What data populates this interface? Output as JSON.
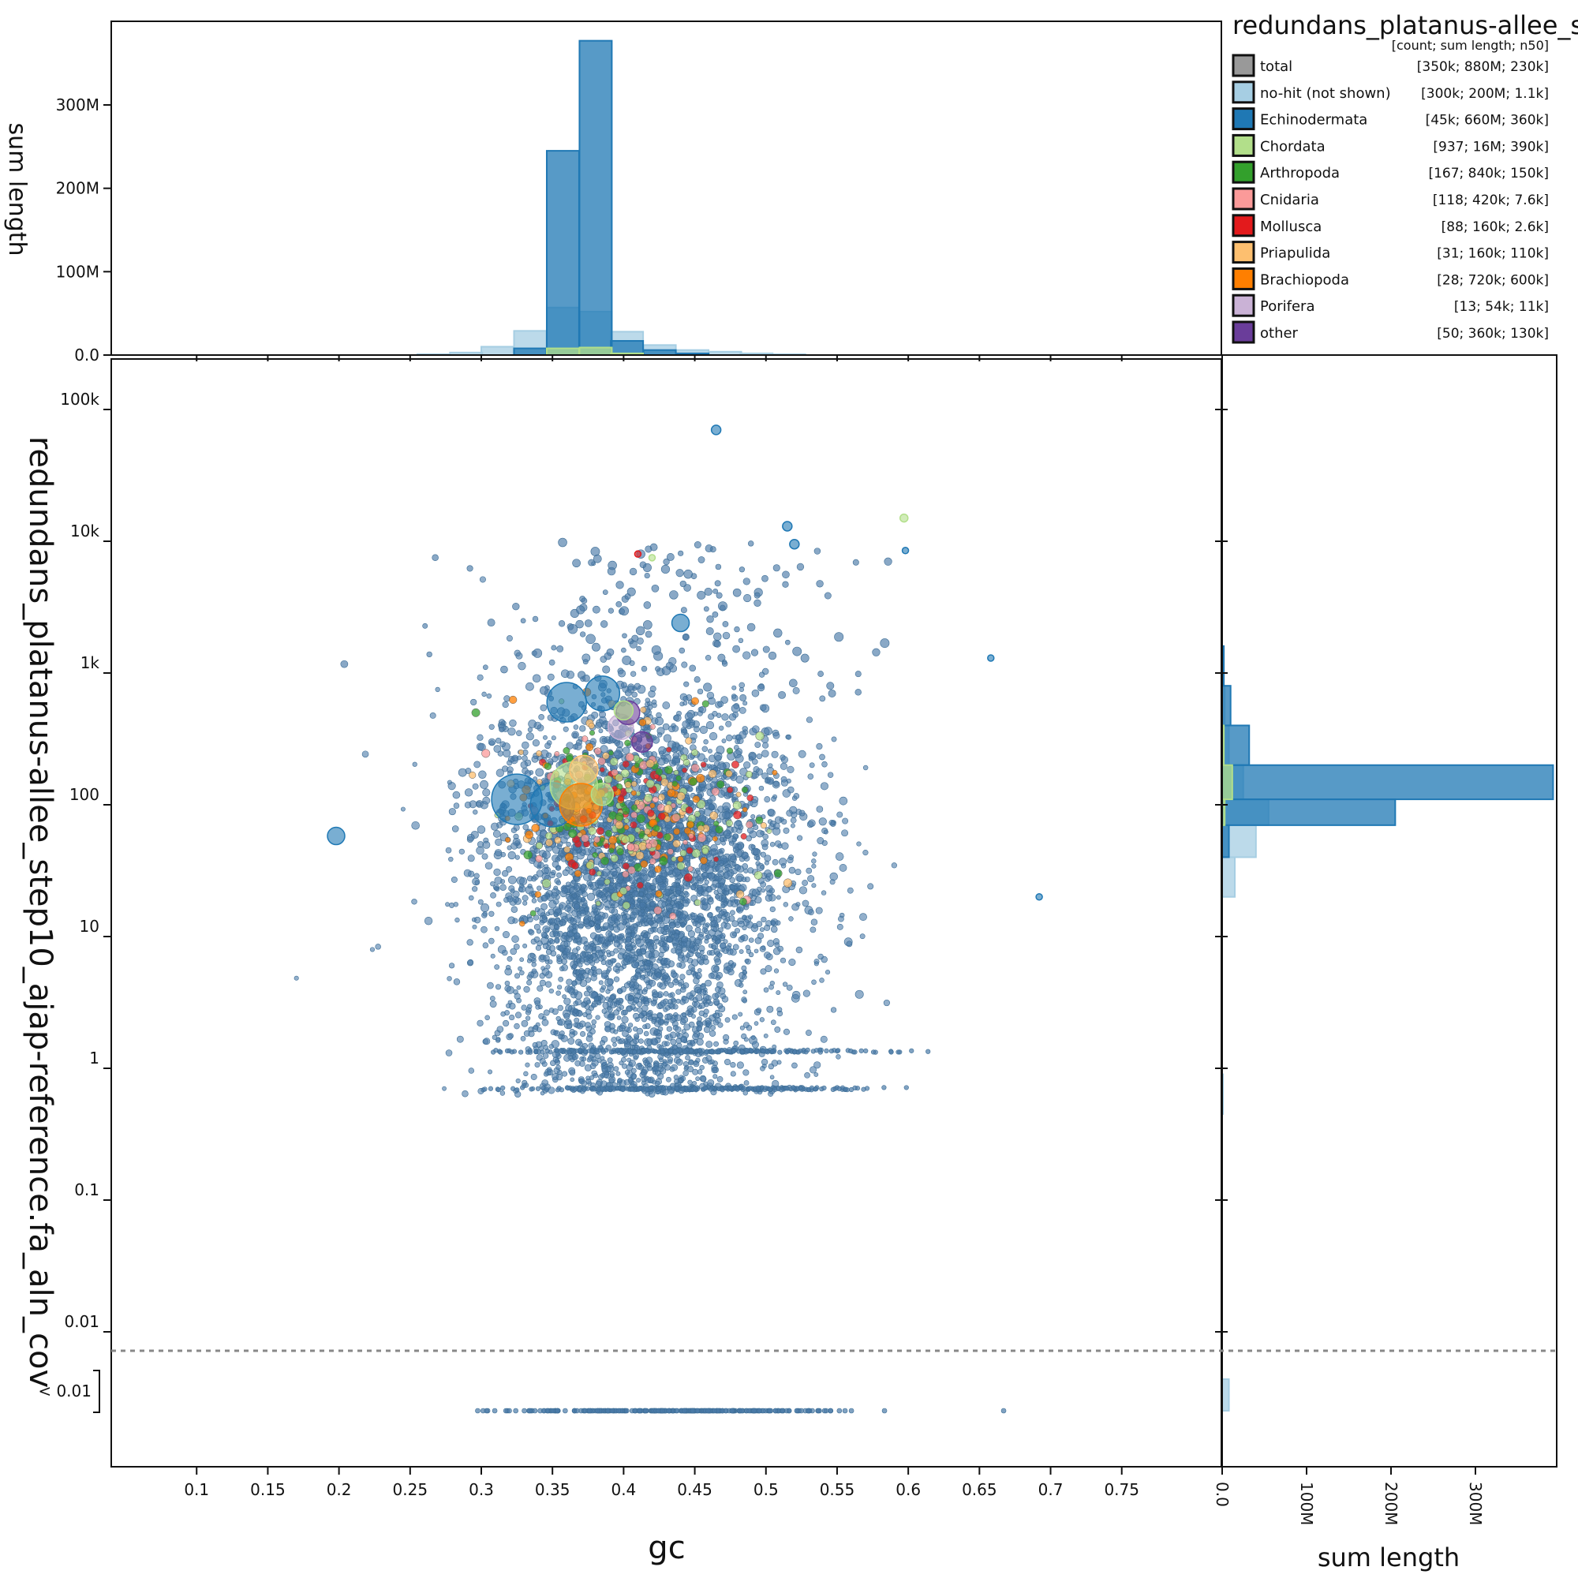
{
  "chart_data": {
    "type": "scatter",
    "title": "redundans_platanus-allee_s",
    "legend_header": "[count; sum length; n50]",
    "xlabel": "gc",
    "ylabel": "redundans_platanus-allee_step10_ajap-reference.fa_aln_cov",
    "top_hist_ylabel": "sum length",
    "right_hist_xlabel": "sum length",
    "low_cov_label": "< 0.01",
    "xlim": [
      0.04,
      0.82
    ],
    "ylim": [
      0.01,
      200000
    ],
    "yscale": "log",
    "x_ticks": [
      "0.1",
      "0.15",
      "0.2",
      "0.25",
      "0.3",
      "0.35",
      "0.4",
      "0.45",
      "0.5",
      "0.55",
      "0.6",
      "0.65",
      "0.7",
      "0.75"
    ],
    "x_tick_values": [
      0.1,
      0.15,
      0.2,
      0.25,
      0.3,
      0.35,
      0.4,
      0.45,
      0.5,
      0.55,
      0.6,
      0.65,
      0.7,
      0.75
    ],
    "y_ticks": [
      "0.01",
      "0.1",
      "1",
      "10",
      "100",
      "1k",
      "10k",
      "100k"
    ],
    "y_tick_values": [
      0.01,
      0.1,
      1,
      10,
      100,
      1000,
      10000,
      100000
    ],
    "top_hist_ticks": [
      "0.0",
      "100M",
      "200M",
      "300M"
    ],
    "top_hist_tick_values": [
      0,
      100,
      200,
      300
    ],
    "right_hist_ticks": [
      "0.0",
      "100M",
      "200M",
      "300M"
    ],
    "right_hist_tick_values": [
      0,
      100,
      200,
      300
    ],
    "legend": [
      {
        "name": "total",
        "color": "#999999",
        "stats": "[350k; 880M; 230k]"
      },
      {
        "name": "no-hit (not shown)",
        "color": "#a6cee3",
        "stats": "[300k; 200M; 1.1k]"
      },
      {
        "name": "Echinodermata",
        "color": "#1f78b4",
        "stats": "[45k; 660M; 360k]"
      },
      {
        "name": "Chordata",
        "color": "#b2df8a",
        "stats": "[937; 16M; 390k]"
      },
      {
        "name": "Arthropoda",
        "color": "#33a02c",
        "stats": "[167; 840k; 150k]"
      },
      {
        "name": "Cnidaria",
        "color": "#fb9a99",
        "stats": "[118; 420k; 7.6k]"
      },
      {
        "name": "Mollusca",
        "color": "#e31a1c",
        "stats": "[88; 160k; 2.6k]"
      },
      {
        "name": "Priapulida",
        "color": "#fdbf6f",
        "stats": "[31; 160k; 110k]"
      },
      {
        "name": "Brachiopoda",
        "color": "#ff7f00",
        "stats": "[28; 720k; 600k]"
      },
      {
        "name": "Porifera",
        "color": "#cab2d6",
        "stats": "[13; 54k; 11k]"
      },
      {
        "name": "other",
        "color": "#6a3d9a",
        "stats": "[50; 360k; 130k]"
      }
    ],
    "top_hist": {
      "bin_width": 0.0227,
      "series": [
        {
          "name": "no-hit (not shown)",
          "color": "#a6cee3",
          "bins": [
            [
              0.255,
              1
            ],
            [
              0.278,
              3
            ],
            [
              0.3,
              10
            ],
            [
              0.323,
              29
            ],
            [
              0.346,
              57
            ],
            [
              0.369,
              52
            ],
            [
              0.391,
              28
            ],
            [
              0.414,
              12
            ],
            [
              0.437,
              6
            ],
            [
              0.46,
              4
            ],
            [
              0.482,
              2
            ],
            [
              0.505,
              1
            ]
          ]
        },
        {
          "name": "Echinodermata",
          "color": "#1f78b4",
          "bins": [
            [
              0.323,
              8
            ],
            [
              0.346,
              245
            ],
            [
              0.369,
              377
            ],
            [
              0.391,
              17
            ],
            [
              0.414,
              6
            ],
            [
              0.437,
              2
            ]
          ]
        },
        {
          "name": "Chordata",
          "color": "#b2df8a",
          "bins": [
            [
              0.346,
              8
            ],
            [
              0.369,
              9
            ],
            [
              0.391,
              2
            ]
          ]
        }
      ]
    },
    "right_hist": {
      "series": [
        {
          "name": "no-hit (not shown)",
          "color": "#a6cee3",
          "bins": [
            [
              [
                0.001,
                0.0015
              ],
              8
            ],
            [
              [
                0.45,
                0.9
              ],
              1
            ],
            [
              [
                20,
                40
              ],
              15
            ],
            [
              [
                40,
                70
              ],
              40
            ],
            [
              [
                70,
                110
              ],
              55
            ],
            [
              [
                110,
                200
              ],
              25
            ],
            [
              [
                200,
                400
              ],
              8
            ],
            [
              [
                400,
                800
              ],
              3
            ],
            [
              [
                800,
                1600
              ],
              1
            ]
          ]
        },
        {
          "name": "Echinodermata",
          "color": "#1f78b4",
          "bins": [
            [
              [
                40,
                70
              ],
              8
            ],
            [
              [
                70,
                110
              ],
              205
            ],
            [
              [
                110,
                200
              ],
              392
            ],
            [
              [
                200,
                400
              ],
              32
            ],
            [
              [
                400,
                800
              ],
              10
            ],
            [
              [
                800,
                1600
              ],
              2
            ]
          ]
        },
        {
          "name": "Chordata",
          "color": "#b2df8a",
          "bins": [
            [
              [
                70,
                110
              ],
              3
            ],
            [
              [
                110,
                200
              ],
              12
            ],
            [
              [
                200,
                400
              ],
              2
            ]
          ]
        }
      ]
    },
    "scatter_points": [
      {
        "gc": 0.465,
        "cov": 70000,
        "color": "#1f78b4",
        "r": 6
      },
      {
        "gc": 0.597,
        "cov": 15000,
        "color": "#b2df8a",
        "r": 5
      },
      {
        "gc": 0.44,
        "cov": 2400,
        "color": "#1f78b4",
        "r": 11
      },
      {
        "gc": 0.198,
        "cov": 58,
        "color": "#1f78b4",
        "r": 11
      },
      {
        "gc": 0.692,
        "cov": 20,
        "color": "#1f78b4",
        "r": 4
      },
      {
        "gc": 0.658,
        "cov": 1300,
        "color": "#1f78b4",
        "r": 4
      },
      {
        "gc": 0.515,
        "cov": 13000,
        "color": "#1f78b4",
        "r": 6
      },
      {
        "gc": 0.52,
        "cov": 9500,
        "color": "#1f78b4",
        "r": 6
      },
      {
        "gc": 0.41,
        "cov": 8000,
        "color": "#e31a1c",
        "r": 4
      },
      {
        "gc": 0.42,
        "cov": 7500,
        "color": "#b2df8a",
        "r": 4
      },
      {
        "gc": 0.598,
        "cov": 8500,
        "color": "#1f78b4",
        "r": 4
      },
      {
        "gc": 0.35,
        "cov": 100,
        "color": "#1f78b4",
        "r": 28
      },
      {
        "gc": 0.325,
        "cov": 110,
        "color": "#1f78b4",
        "r": 32
      },
      {
        "gc": 0.36,
        "cov": 600,
        "color": "#1f78b4",
        "r": 25
      },
      {
        "gc": 0.385,
        "cov": 700,
        "color": "#1f78b4",
        "r": 22
      },
      {
        "gc": 0.365,
        "cov": 140,
        "color": "#b2df8a",
        "r": 30
      },
      {
        "gc": 0.372,
        "cov": 185,
        "color": "#fdbf6f",
        "r": 18
      },
      {
        "gc": 0.398,
        "cov": 390,
        "color": "#cab2d6",
        "r": 16
      },
      {
        "gc": 0.403,
        "cov": 500,
        "color": "#6a3d9a",
        "r": 15
      },
      {
        "gc": 0.413,
        "cov": 300,
        "color": "#6a3d9a",
        "r": 13
      },
      {
        "gc": 0.37,
        "cov": 100,
        "color": "#ff7f00",
        "r": 27
      },
      {
        "gc": 0.385,
        "cov": 120,
        "color": "#b2df8a",
        "r": 14
      },
      {
        "gc": 0.4,
        "cov": 520,
        "color": "#b2df8a",
        "r": 12
      }
    ]
  }
}
